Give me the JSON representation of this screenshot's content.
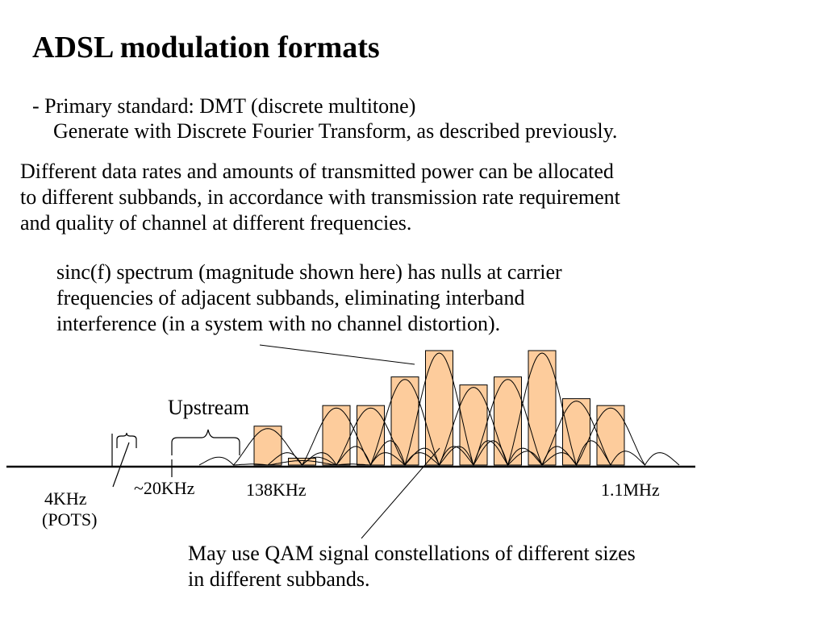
{
  "slide": {
    "title": "ADSL modulation formats",
    "bullet_line1": "- Primary standard: DMT (discrete multitone)",
    "bullet_line2": "Generate with Discrete Fourier Transform, as described previously.",
    "paragraph": [
      "Different data rates and amounts of transmitted power can be allocated",
      "to different subbands, in accordance with transmission rate requirement",
      "and quality of channel at different frequencies."
    ],
    "sinc_note": [
      "sinc(f) spectrum (magnitude shown here) has nulls at carrier",
      "frequencies of adjacent subbands, eliminating interband",
      "interference (in a system with no channel distortion)."
    ],
    "qam_note": [
      "May use QAM signal constellations of different sizes",
      "in different subbands."
    ]
  },
  "diagram": {
    "upstream_label": "Upstream",
    "freq_4khz": "4KHz",
    "pots_label": "(POTS)",
    "freq_20khz": "~20KHz",
    "freq_138khz": "138KHz",
    "freq_1_1mhz": "1.1MHz",
    "subband_fill_color": "#fdcc9c",
    "subband_relative_heights": [
      0.34,
      0.06,
      0.52,
      0.52,
      0.77,
      1.0,
      0.7,
      0.77,
      1.0,
      0.58,
      0.52
    ]
  }
}
